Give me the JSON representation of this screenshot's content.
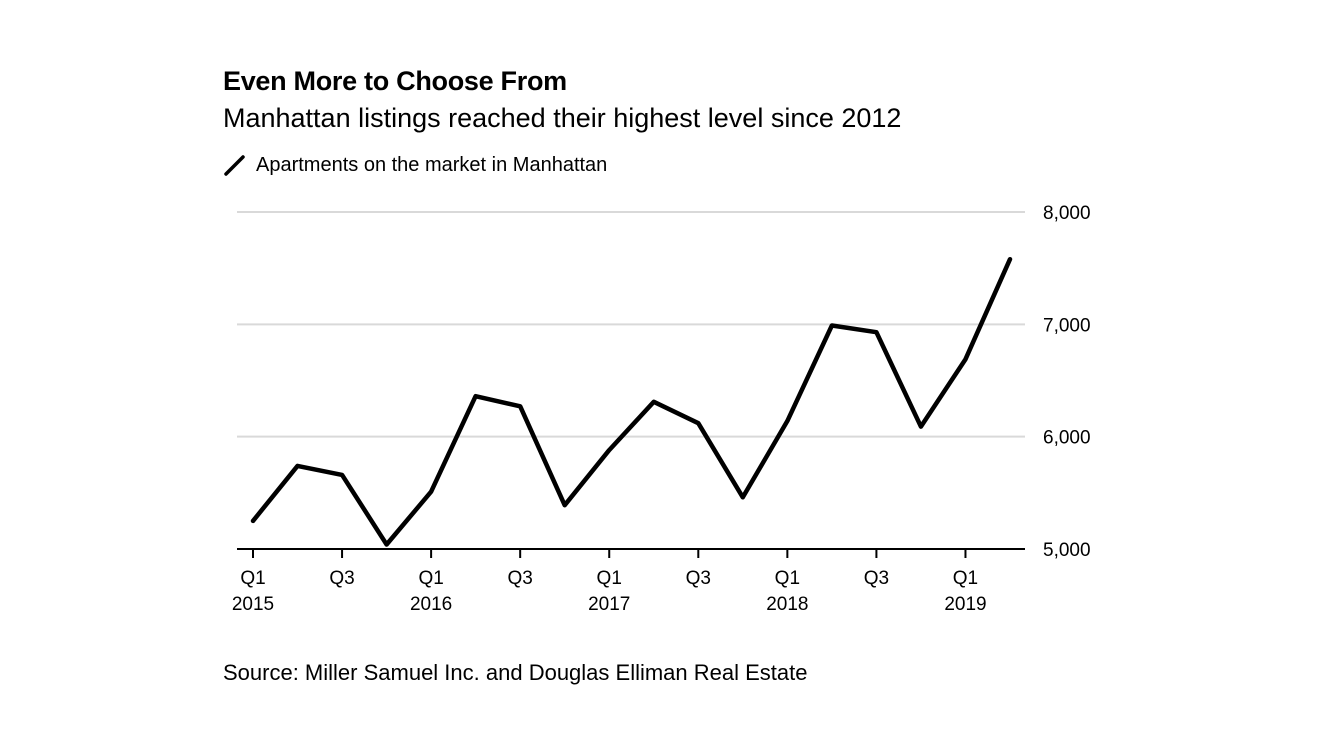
{
  "header": {
    "title": "Even More to Choose From",
    "subtitle": "Manhattan listings reached their highest level since 2012"
  },
  "legend": {
    "label": "Apartments on the market in Manhattan",
    "color": "#000000"
  },
  "footer": {
    "source": "Source: Miller Samuel Inc. and Douglas Elliman Real Estate"
  },
  "colors": {
    "line": "#000000",
    "grid": "#d9d9d9",
    "axis": "#000000",
    "background": "#ffffff"
  },
  "chart_data": {
    "type": "line",
    "title": "Even More to Choose From",
    "subtitle": "Manhattan listings reached their highest level since 2012",
    "xlabel": "",
    "ylabel": "",
    "x": [
      "Q1 2015",
      "Q2 2015",
      "Q3 2015",
      "Q4 2015",
      "Q1 2016",
      "Q2 2016",
      "Q3 2016",
      "Q4 2016",
      "Q1 2017",
      "Q2 2017",
      "Q3 2017",
      "Q4 2017",
      "Q1 2018",
      "Q2 2018",
      "Q3 2018",
      "Q4 2018",
      "Q1 2019",
      "Q2 2019"
    ],
    "series": [
      {
        "name": "Apartments on the market in Manhattan",
        "values": [
          5250,
          5740,
          5660,
          5040,
          5510,
          6360,
          6270,
          5390,
          5880,
          6310,
          6120,
          5460,
          6140,
          6990,
          6930,
          6090,
          6690,
          7580
        ]
      }
    ],
    "ylim": [
      5000,
      8000
    ],
    "y_ticks": [
      5000,
      6000,
      7000,
      8000
    ],
    "y_tick_labels": [
      "5,000",
      "6,000",
      "7,000",
      "8,000"
    ],
    "y_axis_side": "right",
    "x_tick_labels": [
      {
        "index": 0,
        "line1": "Q1",
        "line2": "2015"
      },
      {
        "index": 2,
        "line1": "Q3",
        "line2": ""
      },
      {
        "index": 4,
        "line1": "Q1",
        "line2": "2016"
      },
      {
        "index": 6,
        "line1": "Q3",
        "line2": ""
      },
      {
        "index": 8,
        "line1": "Q1",
        "line2": "2017"
      },
      {
        "index": 10,
        "line1": "Q3",
        "line2": ""
      },
      {
        "index": 12,
        "line1": "Q1",
        "line2": "2018"
      },
      {
        "index": 14,
        "line1": "Q3",
        "line2": ""
      },
      {
        "index": 16,
        "line1": "Q1",
        "line2": "2019"
      }
    ],
    "grid": true,
    "legend_position": "top-left"
  }
}
